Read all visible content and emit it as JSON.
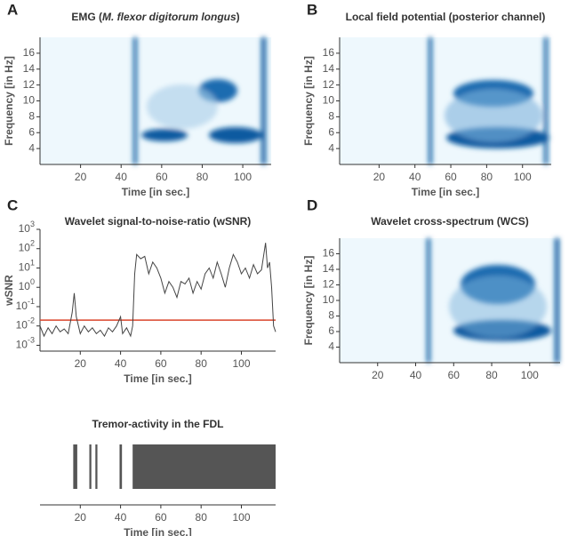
{
  "chart_data": [
    {
      "type": "heatmap",
      "panel": "A",
      "title_parts": [
        "EMG (",
        "M. flexor digitorum longus",
        ")"
      ],
      "xlabel": "Time [in sec.]",
      "ylabel": "Frequency [in Hz]",
      "xlim": [
        0,
        114
      ],
      "xticks": [
        20,
        40,
        60,
        80,
        100
      ],
      "ylim": [
        2,
        18
      ],
      "yticks": [
        4,
        6,
        8,
        10,
        12,
        14,
        16
      ]
    },
    {
      "type": "heatmap",
      "panel": "B",
      "title": "Local field potential (posterior channel)",
      "xlabel": "Time [in sec.]",
      "ylabel": "Frequency [in Hz]",
      "xlim": [
        -2,
        116
      ],
      "xticks": [
        20,
        40,
        60,
        80,
        100
      ],
      "ylim": [
        2,
        18
      ],
      "yticks": [
        4,
        6,
        8,
        10,
        12,
        14,
        16
      ]
    },
    {
      "type": "line",
      "panel": "C",
      "title": "Wavelet signal-to-noise-ratio (wSNR)",
      "xlabel": "Time [in sec.]",
      "ylabel": "wSNR",
      "log_y": true,
      "xlim": [
        0,
        117
      ],
      "xticks": [
        20,
        40,
        60,
        80,
        100
      ],
      "ylim": [
        0.0005,
        1000
      ],
      "yticks": [
        {
          "value": 0.001,
          "label": "10",
          "sup": "-3"
        },
        {
          "value": 0.01,
          "label": "10",
          "sup": "-2"
        },
        {
          "value": 0.1,
          "label": "10",
          "sup": "-1"
        },
        {
          "value": 1,
          "label": "10",
          "sup": "0"
        },
        {
          "value": 10,
          "label": "10",
          "sup": "1"
        },
        {
          "value": 100,
          "label": "10",
          "sup": "2"
        },
        {
          "value": 1000,
          "label": "10",
          "sup": "3"
        }
      ],
      "threshold": 0.02,
      "threshold_color": "#d9442b",
      "series": [
        {
          "color": "#444444",
          "x": [
            0,
            2,
            4,
            6,
            8,
            10,
            12,
            14,
            16,
            17,
            18,
            20,
            22,
            24,
            26,
            28,
            30,
            32,
            34,
            36,
            38,
            40,
            41,
            43,
            45,
            46,
            47,
            48,
            50,
            52,
            54,
            56,
            58,
            60,
            62,
            64,
            66,
            68,
            70,
            72,
            74,
            76,
            78,
            80,
            82,
            84,
            86,
            88,
            90,
            92,
            94,
            96,
            98,
            100,
            102,
            104,
            106,
            108,
            110,
            112,
            113,
            114,
            115,
            116,
            117
          ],
          "values": [
            0.01,
            0.003,
            0.008,
            0.004,
            0.01,
            0.005,
            0.007,
            0.004,
            0.05,
            0.5,
            0.03,
            0.004,
            0.01,
            0.005,
            0.008,
            0.004,
            0.006,
            0.003,
            0.008,
            0.005,
            0.01,
            0.03,
            0.004,
            0.008,
            0.003,
            0.01,
            5,
            50,
            30,
            40,
            5,
            20,
            10,
            3,
            0.5,
            2,
            1,
            0.3,
            2,
            1.5,
            3,
            0.5,
            2,
            0.8,
            5,
            10,
            3,
            20,
            5,
            1,
            10,
            50,
            20,
            5,
            10,
            3,
            15,
            5,
            8,
            200,
            10,
            20,
            1,
            0.01,
            0.005
          ]
        }
      ]
    },
    {
      "type": "heatmap",
      "panel": "D",
      "title": "Wavelet cross-spectrum (WCS)",
      "ylabel": "Frequency [in Hz]",
      "xlim": [
        0,
        116
      ],
      "xticks": [
        20,
        40,
        60,
        80,
        100
      ],
      "ylim": [
        2,
        18
      ],
      "yticks": [
        4,
        6,
        8,
        10,
        12,
        14,
        16
      ]
    },
    {
      "type": "raster",
      "title": "Tremor-activity in the FDL",
      "xlabel": "Time [in sec.]",
      "color": "#555555",
      "xlim": [
        0,
        117
      ],
      "xticks": [
        20,
        40,
        60,
        80,
        100
      ],
      "intervals": [
        {
          "start": 16.5,
          "end": 18.5
        },
        {
          "start": 24.5,
          "end": 25.5
        },
        {
          "start": 27.5,
          "end": 28.5
        },
        {
          "start": 39.5,
          "end": 40.7
        },
        {
          "start": 46,
          "end": 117
        }
      ]
    }
  ]
}
